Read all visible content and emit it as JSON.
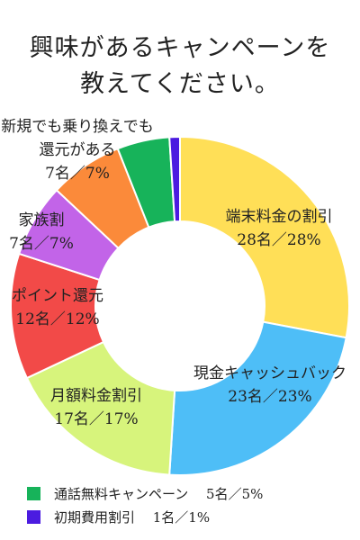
{
  "title_lines": [
    "興味があるキャンペーンを",
    "教えてください。"
  ],
  "chart_data": {
    "type": "donut",
    "title": "興味があるキャンペーンを教えてください。",
    "start_angle_deg": 0,
    "direction": "clockwise",
    "slices": [
      {
        "name": "端末料金の割引",
        "count": 28,
        "percent": 28,
        "color": "#FFDF57",
        "label_lines": [
          "端末料金の割引",
          "28名／28%"
        ]
      },
      {
        "name": "現金キャッシュバック",
        "count": 23,
        "percent": 23,
        "color": "#4EBEF7",
        "label_lines": [
          "現金キャッシュバック",
          "23名／23%"
        ]
      },
      {
        "name": "月額料金割引",
        "count": 17,
        "percent": 17,
        "color": "#D7F47C",
        "label_lines": [
          "月額料金割引",
          "17名／17%"
        ]
      },
      {
        "name": "ポイント還元",
        "count": 12,
        "percent": 12,
        "color": "#F24A48",
        "label_lines": [
          "ポイント還元",
          "12名／12%"
        ]
      },
      {
        "name": "家族割",
        "count": 7,
        "percent": 7,
        "color": "#C264E8",
        "label_lines": [
          "家族割",
          "7名／7%"
        ]
      },
      {
        "name": "新規でも乗り換えでも還元がある",
        "count": 7,
        "percent": 7,
        "color": "#FB8A3A",
        "label_lines": [
          "新規でも乗り換えでも",
          "還元がある",
          "7名／7%"
        ]
      },
      {
        "name": "通話無料キャンペーン",
        "count": 5,
        "percent": 5,
        "color": "#17B35A",
        "label_lines": []
      },
      {
        "name": "初期費用割引",
        "count": 1,
        "percent": 1,
        "color": "#4B1BE0",
        "label_lines": []
      }
    ],
    "legend": [
      {
        "text": "通話無料キャンペーン　 5名／5%",
        "color": "#17B35A"
      },
      {
        "text": "初期費用割引　 1名／1%",
        "color": "#4B1BE0"
      }
    ]
  }
}
